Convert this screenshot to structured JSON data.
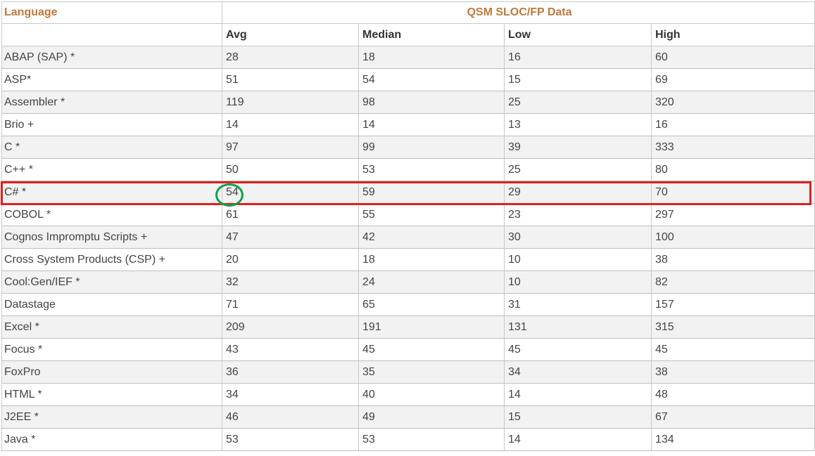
{
  "table": {
    "title_language": "Language",
    "title_group": "QSM SLOC/FP Data",
    "headers": [
      "",
      "Avg",
      "Median",
      "Low",
      "High"
    ],
    "rows": [
      [
        "ABAP (SAP) *",
        "28",
        "18",
        "16",
        "60"
      ],
      [
        "ASP*",
        "51",
        "54",
        "15",
        "69"
      ],
      [
        "Assembler *",
        "119",
        "98",
        "25",
        "320"
      ],
      [
        "Brio +",
        "14",
        "14",
        "13",
        "16"
      ],
      [
        "C *",
        "97",
        "99",
        "39",
        "333"
      ],
      [
        "C++ *",
        "50",
        "53",
        "25",
        "80"
      ],
      [
        "C# *",
        "54",
        "59",
        "29",
        "70"
      ],
      [
        "COBOL *",
        "61",
        "55",
        "23",
        "297"
      ],
      [
        "Cognos Impromptu Scripts +",
        "47",
        "42",
        "30",
        "100"
      ],
      [
        "Cross System Products (CSP) +",
        "20",
        "18",
        "10",
        "38"
      ],
      [
        "Cool:Gen/IEF *",
        "32",
        "24",
        "10",
        "82"
      ],
      [
        "Datastage",
        "71",
        "65",
        "31",
        "157"
      ],
      [
        "Excel *",
        "209",
        "191",
        "131",
        "315"
      ],
      [
        "Focus *",
        "43",
        "45",
        "45",
        "45"
      ],
      [
        "FoxPro",
        "36",
        "35",
        "34",
        "38"
      ],
      [
        "HTML *",
        "34",
        "40",
        "14",
        "48"
      ],
      [
        "J2EE *",
        "46",
        "49",
        "15",
        "67"
      ],
      [
        "Java *",
        "53",
        "53",
        "14",
        "134"
      ]
    ]
  },
  "annotations": {
    "highlight_row": "C# *",
    "highlight_color": "#e02020",
    "circled_value": "54",
    "circle_color": "#12a04a"
  }
}
